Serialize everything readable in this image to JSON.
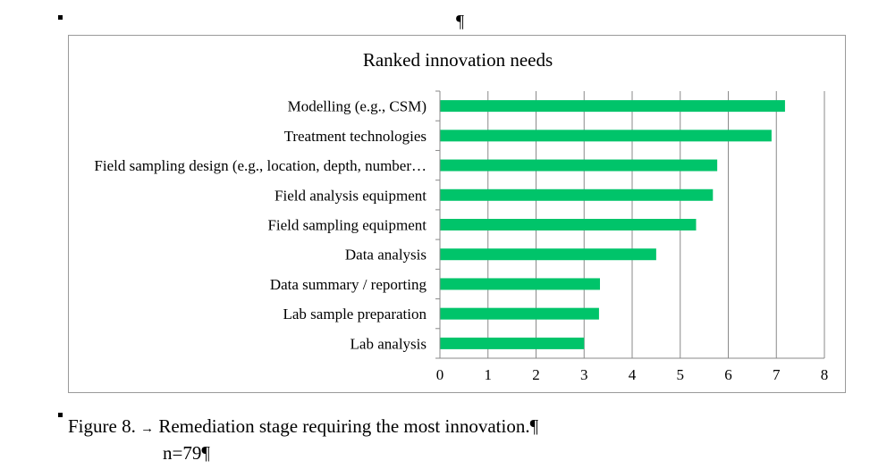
{
  "top_pilcrow": "¶",
  "chart_data": {
    "type": "bar",
    "orientation": "horizontal",
    "title": "Ranked innovation needs",
    "categories": [
      "Modelling (e.g., CSM)",
      "Treatment technologies",
      "Field sampling design (e.g., location, depth, number…",
      "Field analysis equipment",
      "Field sampling equipment",
      "Data analysis",
      "Data summary / reporting",
      "Lab sample preparation",
      "Lab analysis"
    ],
    "values": [
      7.18,
      6.9,
      5.77,
      5.68,
      5.33,
      4.5,
      3.33,
      3.31,
      3.0
    ],
    "xlim": [
      0,
      8
    ],
    "xticks": [
      "0",
      "1",
      "2",
      "3",
      "4",
      "5",
      "6",
      "7",
      "8"
    ],
    "bar_color": "#00C46A",
    "grid": "vertical",
    "legend": "none"
  },
  "caption": {
    "prefix": "Figure 8.",
    "arrow": "→",
    "text": "Remediation stage requiring the most innovation.¶",
    "sample_size": "n=79¶"
  }
}
